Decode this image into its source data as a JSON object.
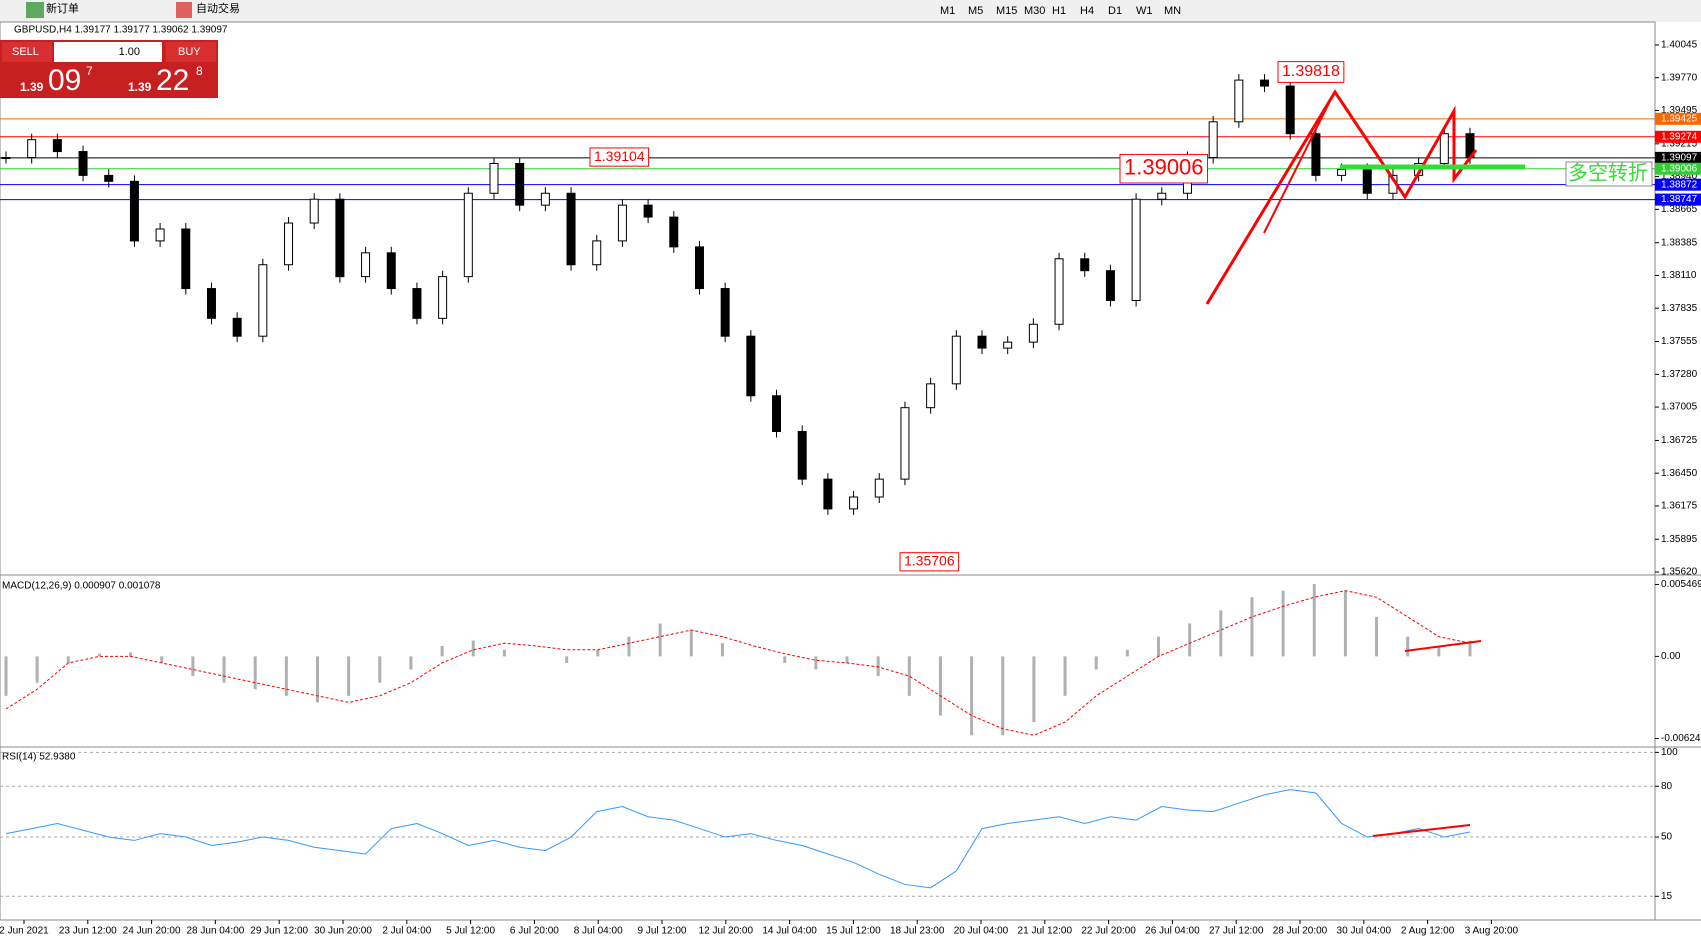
{
  "toolbar": {
    "new_order": "新订单",
    "auto_trading": "自动交易",
    "timeframes": [
      "M1",
      "M5",
      "M15",
      "M30",
      "H1",
      "H4",
      "D1",
      "W1",
      "MN"
    ]
  },
  "trade_panel": {
    "sell": "SELL",
    "buy": "BUY",
    "volume": "1.00",
    "bid": {
      "big": "1.39",
      "mid": "09",
      "small": "7"
    },
    "ask": {
      "big": "1.39",
      "mid": "22",
      "small": "8"
    }
  },
  "chart_data": [
    {
      "type": "candlestick",
      "title": "GBPUSD,H4  1.39177 1.39177 1.39062 1.39097",
      "color": "#000000",
      "values": [
        1.391,
        1.3925,
        1.3915,
        1.3895,
        1.389,
        1.384,
        1.385,
        1.38,
        1.3775,
        1.376,
        1.382,
        1.3855,
        1.3875,
        1.381,
        1.383,
        1.38,
        1.3775,
        1.381,
        1.388,
        1.3905,
        1.387,
        1.388,
        1.382,
        1.384,
        1.387,
        1.386,
        1.3835,
        1.38,
        1.376,
        1.371,
        1.368,
        1.364,
        1.3615,
        1.3625,
        1.364,
        1.37,
        1.372,
        1.376,
        1.375,
        1.3755,
        1.377,
        1.3825,
        1.3815,
        1.379,
        1.3875,
        1.388,
        1.391,
        1.394,
        1.3975,
        1.397,
        1.393,
        1.3895,
        1.39,
        1.388,
        1.3895,
        1.3905,
        1.393,
        1.39097
      ],
      "ylim": [
        1.35612,
        1.40221
      ],
      "yticks": [
        {
          "value": 1.40045,
          "label": "1.40045"
        },
        {
          "value": 1.3977,
          "label": "1.39770"
        },
        {
          "value": 1.39495,
          "label": "1.39495"
        },
        {
          "value": 1.39215,
          "label": "1.39215"
        },
        {
          "value": 1.3894,
          "label": "1.38940"
        },
        {
          "value": 1.38665,
          "label": "1.38665"
        },
        {
          "value": 1.38385,
          "label": "1.38385"
        },
        {
          "value": 1.3811,
          "label": "1.38110"
        },
        {
          "value": 1.37835,
          "label": "1.37835"
        },
        {
          "value": 1.37555,
          "label": "1.37555"
        },
        {
          "value": 1.3728,
          "label": "1.37280"
        },
        {
          "value": 1.37005,
          "label": "1.37005"
        },
        {
          "value": 1.36725,
          "label": "1.36725"
        },
        {
          "value": 1.3645,
          "label": "1.36450"
        },
        {
          "value": 1.36175,
          "label": "1.36175"
        },
        {
          "value": 1.35895,
          "label": "1.35895"
        },
        {
          "value": 1.3562,
          "label": "1.35620"
        }
      ],
      "levels": [
        {
          "value": 1.39425,
          "label": "1.39425",
          "color": "#ff6600"
        },
        {
          "value": 1.39274,
          "label": "1.39274",
          "color": "#ff0000"
        },
        {
          "value": 1.39097,
          "label": "1.39097",
          "color": "#000000"
        },
        {
          "value": 1.39006,
          "label": "1.39006",
          "color": "#33cc33"
        },
        {
          "value": 1.38872,
          "label": "1.38872",
          "color": "#0000ff"
        },
        {
          "value": 1.38747,
          "label": "1.38747",
          "color": "#0000ff"
        }
      ],
      "annotations": [
        {
          "value": 1.39818,
          "label": "1.39818"
        },
        {
          "value": 1.39104,
          "label": "1.39104"
        },
        {
          "value": 1.39006,
          "label": "1.39006"
        },
        {
          "value": 1.35706,
          "label": "1.35706"
        }
      ],
      "note_text": "多空转折",
      "x_labels": [
        "2 Jun 2021",
        "23 Jun 12:00",
        "24 Jun 20:00",
        "28 Jun 04:00",
        "29 Jun 12:00",
        "30 Jun 20:00",
        "2 Jul 04:00",
        "5 Jul 12:00",
        "6 Jul 20:00",
        "8 Jul 04:00",
        "9 Jul 12:00",
        "12 Jul 20:00",
        "14 Jul 04:00",
        "15 Jul 12:00",
        "18 Jul 23:00",
        "20 Jul 04:00",
        "21 Jul 12:00",
        "22 Jul 20:00",
        "26 Jul 04:00",
        "27 Jul 12:00",
        "28 Jul 20:00",
        "30 Jul 04:00",
        "2 Aug 12:00",
        "3 Aug 20:00"
      ]
    },
    {
      "type": "macd",
      "title": "MACD(12,26,9) 0.000907 0.001078",
      "series": [
        {
          "color": "#b0b0b0",
          "values": [
            -0.003,
            -0.002,
            -0.0005,
            0.0002,
            0.0003,
            -0.0005,
            -0.0015,
            -0.002,
            -0.0025,
            -0.003,
            -0.0035,
            -0.003,
            -0.002,
            -0.001,
            0.0008,
            0.0012,
            0.0005,
            0,
            -0.0005,
            0.0005,
            0.0015,
            0.0025,
            0.002,
            0.001,
            0,
            -0.0005,
            -0.001,
            -0.0005,
            -0.0015,
            -0.003,
            -0.0045,
            -0.006,
            -0.006,
            -0.005,
            -0.003,
            -0.001,
            0.0005,
            0.0015,
            0.0025,
            0.0035,
            0.0045,
            0.005,
            0.0055,
            0.005,
            0.003,
            0.0015,
            0.0008,
            0.0012
          ]
        },
        {
          "color": "#ff0000",
          "values": [
            -0.004,
            -0.0025,
            -0.0005,
            0,
            0,
            -0.0005,
            -0.001,
            -0.0015,
            -0.002,
            -0.0025,
            -0.003,
            -0.0035,
            -0.003,
            -0.002,
            -0.0005,
            0.0005,
            0.001,
            0.0008,
            0.0005,
            0.0005,
            0.001,
            0.0015,
            0.002,
            0.0015,
            0.0008,
            0.0002,
            -0.0003,
            -0.0005,
            -0.0008,
            -0.0015,
            -0.003,
            -0.0045,
            -0.0055,
            -0.006,
            -0.005,
            -0.003,
            -0.0015,
            0,
            0.001,
            0.002,
            0.003,
            0.0038,
            0.0045,
            0.005,
            0.0045,
            0.003,
            0.0015,
            0.001
          ]
        }
      ],
      "ylim": [
        -0.00674,
        0.00596
      ],
      "yticks": [
        0.005469,
        {
          "value": 0,
          "label": "0.00"
        },
        -0.006245
      ]
    },
    {
      "type": "line",
      "title": "RSI(14) 52.9380",
      "color": "#3399ff",
      "values": [
        52,
        55,
        58,
        54,
        50,
        48,
        52,
        50,
        45,
        47,
        50,
        48,
        44,
        42,
        40,
        55,
        58,
        52,
        45,
        48,
        44,
        42,
        50,
        65,
        68,
        62,
        60,
        55,
        50,
        52,
        48,
        45,
        40,
        35,
        28,
        22,
        20,
        30,
        55,
        58,
        60,
        62,
        58,
        62,
        60,
        68,
        66,
        65,
        70,
        75,
        78,
        76,
        58,
        50,
        52,
        55,
        50,
        53
      ],
      "ylim": [
        1,
        102
      ],
      "yticks": [
        100,
        80,
        50,
        15
      ]
    }
  ]
}
